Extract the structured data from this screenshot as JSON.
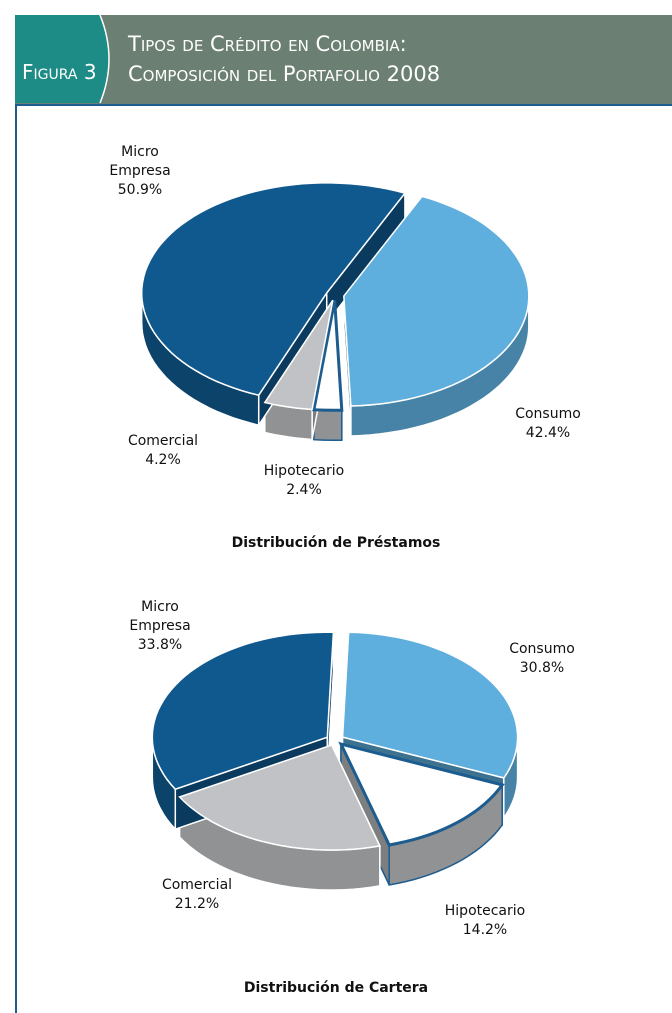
{
  "figure": {
    "label": "Figura 3",
    "title_lines": [
      "Tipos de Crédito en Colombia:",
      "Composición del Portafolio 2008"
    ]
  },
  "chart_data": [
    {
      "type": "pie",
      "title": "Distribución de Préstamos",
      "categories": [
        "Consumo",
        "Hipotecario",
        "Comercial",
        "Micro Empresa"
      ],
      "values": [
        42.4,
        2.4,
        4.2,
        50.9
      ],
      "value_labels": [
        "42.4%",
        "2.4%",
        "4.2%",
        "50.9%"
      ],
      "colors": [
        "#5eaede",
        "#ffffff",
        "#c0c2c5",
        "#10598f"
      ]
    },
    {
      "type": "pie",
      "title": "Distribución de Cartera",
      "categories": [
        "Consumo",
        "Hipotecario",
        "Comercial",
        "Micro Empresa"
      ],
      "values": [
        30.8,
        14.2,
        21.2,
        33.8
      ],
      "value_labels": [
        "30.8%",
        "14.2%",
        "21.2%",
        "33.8%"
      ],
      "colors": [
        "#5eaede",
        "#ffffff",
        "#c0c2c5",
        "#10598f"
      ]
    }
  ]
}
